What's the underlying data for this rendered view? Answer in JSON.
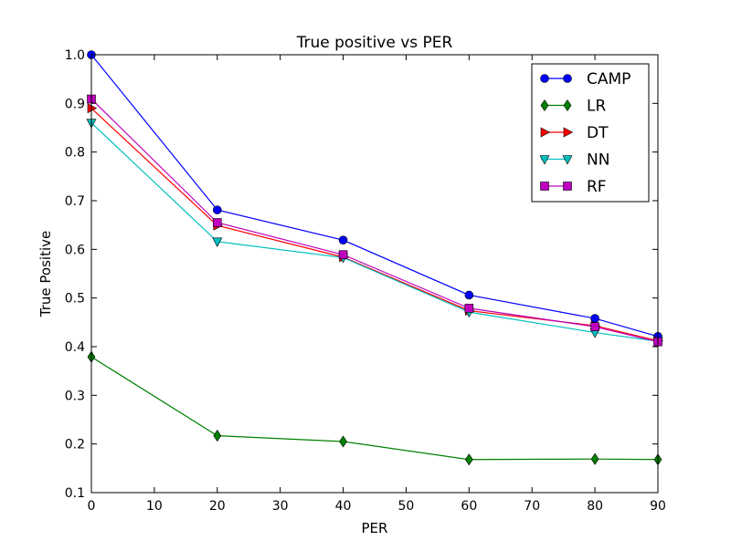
{
  "chart_data": {
    "type": "line",
    "title": "True positive vs PER",
    "xlabel": "PER",
    "ylabel": "True Positive",
    "x": [
      0,
      20,
      40,
      60,
      80,
      90
    ],
    "xlim": [
      0,
      90
    ],
    "ylim": [
      0.1,
      1.0
    ],
    "xticks": [
      0,
      10,
      20,
      30,
      40,
      50,
      60,
      70,
      80,
      90
    ],
    "yticks": [
      0.1,
      0.2,
      0.3,
      0.4,
      0.5,
      0.6,
      0.7,
      0.8,
      0.9,
      1.0
    ],
    "grid": false,
    "legend_position": "top-right",
    "series": [
      {
        "name": "CAMP",
        "color": "#0000ff",
        "marker": "circle",
        "values": [
          1.0,
          0.681,
          0.619,
          0.506,
          0.458,
          0.421
        ]
      },
      {
        "name": "LR",
        "color": "#008000",
        "marker": "diamond",
        "values": [
          0.379,
          0.217,
          0.205,
          0.168,
          0.169,
          0.168
        ]
      },
      {
        "name": "DT",
        "color": "#ff0000",
        "marker": "triangle-right",
        "values": [
          0.89,
          0.649,
          0.584,
          0.474,
          0.443,
          0.412
        ]
      },
      {
        "name": "NN",
        "color": "#00bfbf",
        "marker": "triangle-down",
        "values": [
          0.86,
          0.616,
          0.583,
          0.471,
          0.429,
          0.411
        ]
      },
      {
        "name": "RF",
        "color": "#bf00bf",
        "marker": "square",
        "values": [
          0.909,
          0.655,
          0.589,
          0.479,
          0.441,
          0.41
        ]
      }
    ]
  }
}
